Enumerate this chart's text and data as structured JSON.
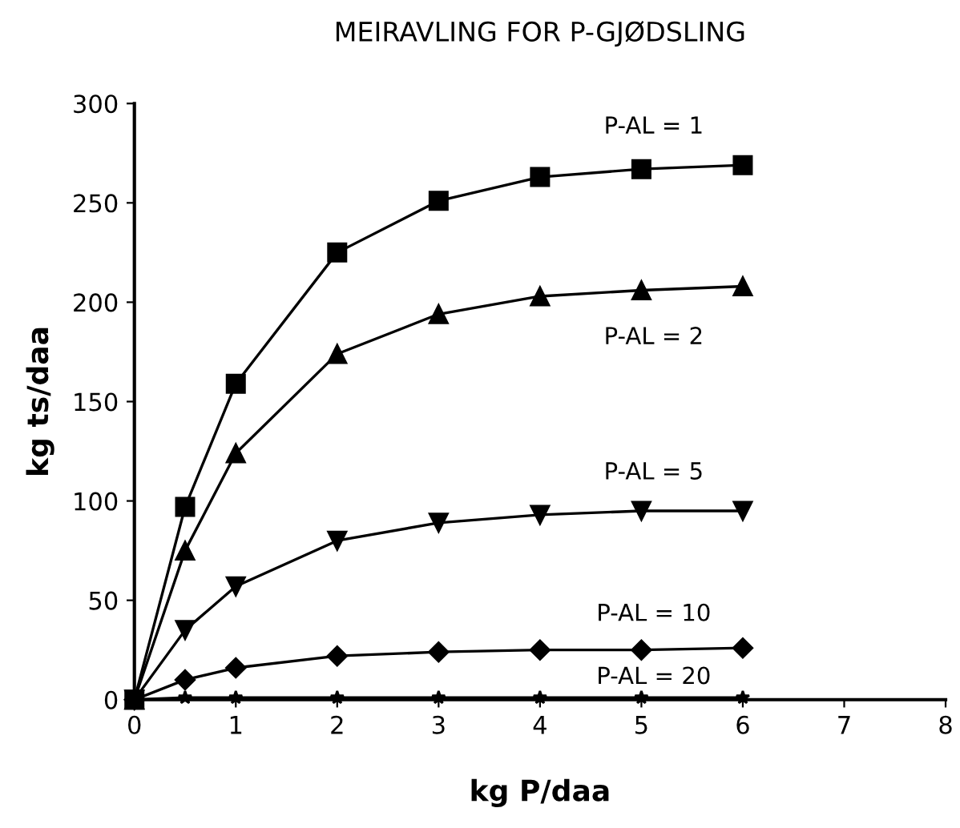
{
  "chart_data": {
    "type": "line",
    "title": "MEIRAVLING FOR P-GJØDSLING",
    "xlabel": "kg P/daa",
    "ylabel": "kg ts/daa",
    "x": [
      0,
      0.5,
      1,
      2,
      3,
      4,
      5,
      6
    ],
    "series": [
      {
        "name": "P-AL = 1",
        "color": "#000000",
        "marker": "square",
        "values": [
          0,
          97,
          159,
          225,
          251,
          263,
          267,
          269
        ]
      },
      {
        "name": "P-AL = 2",
        "color": "#000000",
        "marker": "triangle",
        "values": [
          0,
          75,
          124,
          174,
          194,
          203,
          206,
          208
        ]
      },
      {
        "name": "P-AL = 5",
        "color": "#000000",
        "marker": "triangle_down",
        "values": [
          0,
          35,
          57,
          80,
          89,
          93,
          95,
          95
        ]
      },
      {
        "name": "P-AL = 10",
        "color": "#000000",
        "marker": "diamond",
        "values": [
          0,
          10,
          16,
          22,
          24,
          25,
          25,
          26
        ]
      },
      {
        "name": "P-AL = 20",
        "color": "#000000",
        "marker": "star",
        "values": [
          0,
          1,
          1,
          1,
          1,
          1,
          1,
          1
        ]
      }
    ],
    "xlim": [
      0,
      8
    ],
    "xticks": [
      0,
      1,
      2,
      3,
      4,
      5,
      6,
      7,
      8
    ],
    "ylim": [
      0,
      300
    ],
    "yticks": [
      0,
      50,
      100,
      150,
      200,
      250,
      300
    ],
    "grid": false,
    "legend": false,
    "line_style": "solid"
  }
}
